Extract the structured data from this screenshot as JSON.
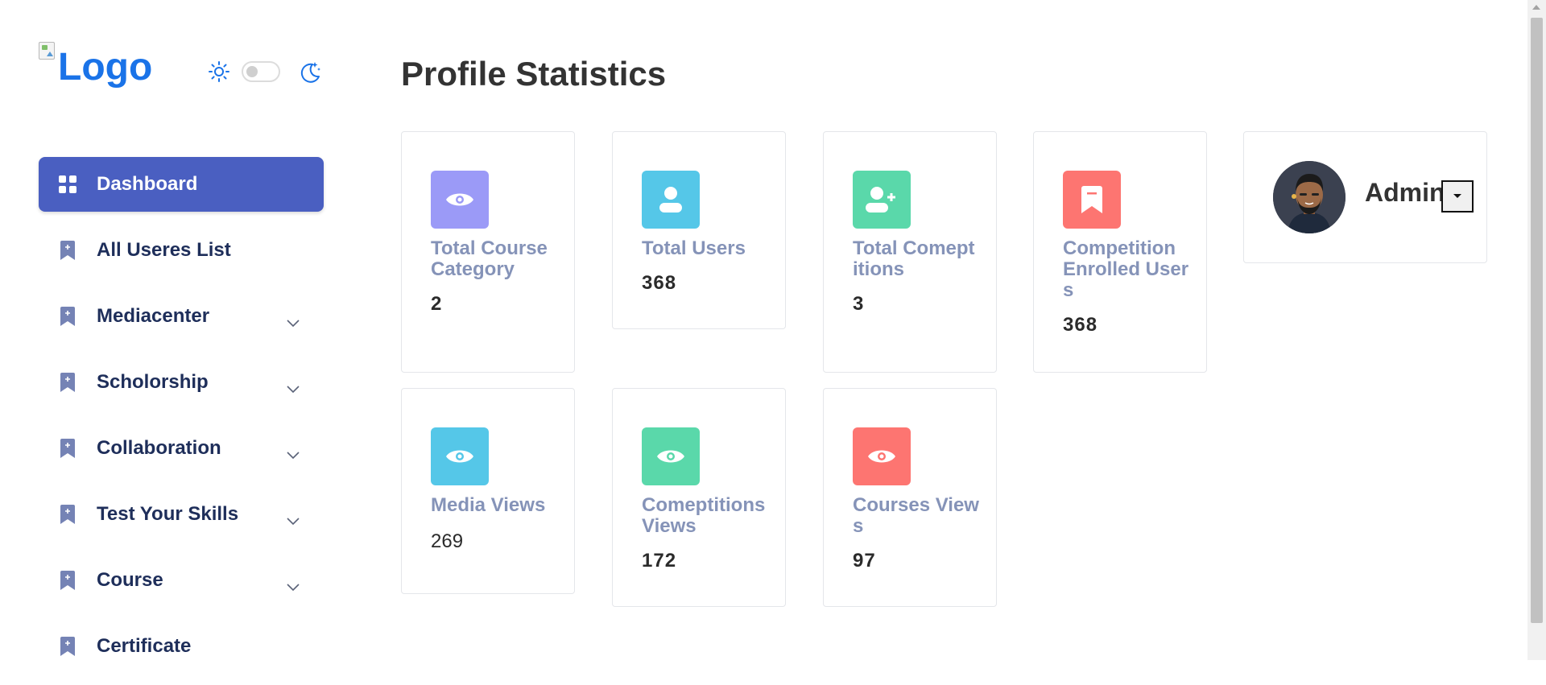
{
  "logo": {
    "alt_text": "Logo"
  },
  "theme_toggle": {
    "light_icon": "sun-icon",
    "dark_icon": "moon-stars-icon",
    "state": "off"
  },
  "sidebar": {
    "items": [
      {
        "label": "Dashboard",
        "icon": "grid-icon",
        "active": true,
        "has_submenu": false
      },
      {
        "label": "All Useres List",
        "icon": "bookmark-plus-icon",
        "active": false,
        "has_submenu": false
      },
      {
        "label": "Mediacenter",
        "icon": "bookmark-plus-icon",
        "active": false,
        "has_submenu": true
      },
      {
        "label": "Scholorship",
        "icon": "bookmark-plus-icon",
        "active": false,
        "has_submenu": true
      },
      {
        "label": "Collaboration",
        "icon": "bookmark-plus-icon",
        "active": false,
        "has_submenu": true
      },
      {
        "label": "Test Your Skills",
        "icon": "bookmark-plus-icon",
        "active": false,
        "has_submenu": true
      },
      {
        "label": "Course",
        "icon": "bookmark-plus-icon",
        "active": false,
        "has_submenu": true
      },
      {
        "label": "Certificate",
        "icon": "bookmark-plus-icon",
        "active": false,
        "has_submenu": false
      }
    ]
  },
  "main": {
    "title": "Profile Statistics",
    "stats": [
      {
        "label": "Total CourseCategory",
        "value": "2",
        "icon": "eye-icon",
        "color": "#9b9af7"
      },
      {
        "label": "Total Users",
        "value": "368",
        "icon": "user-icon",
        "color": "#55c7e8"
      },
      {
        "label": "Total Comeptitions",
        "value": "3",
        "icon": "user-plus-icon",
        "color": "#5ad8aa"
      },
      {
        "label": "Competition Enrolled Users",
        "value": "368",
        "icon": "bookmark-icon",
        "color": "#fd7571"
      },
      {
        "label": "Media Views",
        "value": "269",
        "icon": "eye-icon",
        "color": "#55c7e8"
      },
      {
        "label": "Comeptitions Views",
        "value": "172",
        "icon": "eye-icon",
        "color": "#5ad8aa"
      },
      {
        "label": "Courses Views",
        "value": "97",
        "icon": "eye-icon",
        "color": "#fd7571"
      }
    ]
  },
  "profile": {
    "name": "Admin",
    "avatar": "avatar",
    "menu_icon": "caret-down-icon"
  },
  "colors": {
    "accent": "#4a5fc1",
    "nav_text": "#1e2e5a",
    "label_text": "#8593b8",
    "logo_text": "#1a73e8"
  }
}
